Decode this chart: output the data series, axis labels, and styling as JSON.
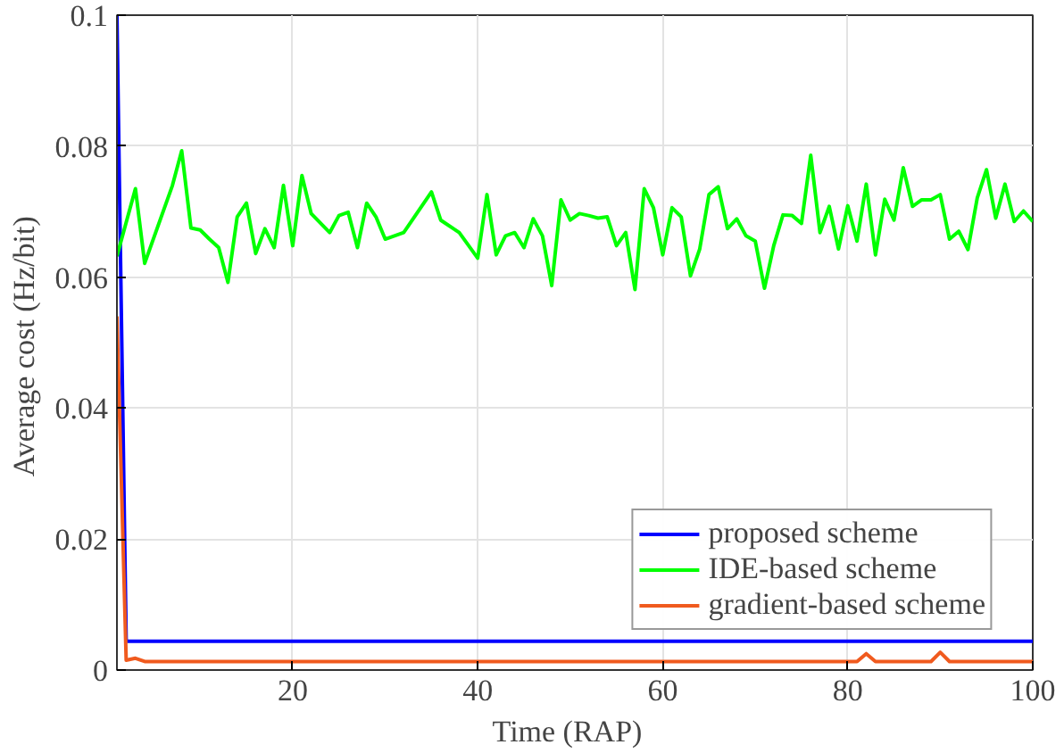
{
  "chart_data": {
    "type": "line",
    "xlabel": "Time   (RAP)",
    "ylabel": "Average cost  (Hz/bit)",
    "xlim": [
      1,
      100
    ],
    "ylim": [
      0,
      0.1
    ],
    "xticks": [
      20,
      40,
      60,
      80,
      100
    ],
    "yticks": [
      0,
      0.02,
      0.04,
      0.06,
      0.08,
      0.1
    ],
    "grid": true,
    "legend": "bottom right",
    "marker": "none",
    "line_style": "solid",
    "series": [
      {
        "name": "proposed scheme",
        "color": "#0000ff",
        "x": [
          1,
          2,
          100
        ],
        "values": [
          0.1,
          0.0044,
          0.0044
        ]
      },
      {
        "name": "IDE-based scheme",
        "color": "#00ff00",
        "x": [
          1,
          3,
          4,
          7,
          8,
          9,
          10,
          11,
          12,
          13,
          14,
          15,
          16,
          17,
          18,
          19,
          20,
          21,
          22,
          24,
          25,
          26,
          27,
          28,
          29,
          30,
          31,
          32,
          35,
          36,
          38,
          40,
          41,
          42,
          43,
          44,
          45,
          46,
          47,
          48,
          49,
          50,
          51,
          52,
          53,
          54,
          55,
          56,
          57,
          58,
          59,
          60,
          61,
          62,
          63,
          64,
          65,
          66,
          67,
          68,
          69,
          70,
          71,
          72,
          73,
          74,
          75,
          76,
          77,
          78,
          79,
          80,
          81,
          82,
          83,
          84,
          85,
          86,
          87,
          88,
          89,
          90,
          91,
          92,
          93,
          94,
          95,
          96,
          97,
          98,
          99,
          100
        ],
        "values": [
          0.0632,
          0.0735,
          0.0621,
          0.074,
          0.0793,
          0.0675,
          0.0672,
          0.0658,
          0.0645,
          0.0592,
          0.0692,
          0.0713,
          0.0636,
          0.0674,
          0.0645,
          0.074,
          0.0648,
          0.0755,
          0.0697,
          0.0668,
          0.0694,
          0.0699,
          0.0645,
          0.0713,
          0.0692,
          0.0658,
          0.0663,
          0.0668,
          0.073,
          0.0687,
          0.0668,
          0.0629,
          0.0726,
          0.0634,
          0.0663,
          0.0668,
          0.0645,
          0.0689,
          0.0663,
          0.0587,
          0.0718,
          0.0687,
          0.0697,
          0.0694,
          0.069,
          0.0692,
          0.0648,
          0.0668,
          0.0581,
          0.0735,
          0.0706,
          0.0634,
          0.0706,
          0.0692,
          0.0602,
          0.0643,
          0.0726,
          0.0738,
          0.0674,
          0.0689,
          0.0663,
          0.0655,
          0.0583,
          0.0648,
          0.0695,
          0.0694,
          0.0682,
          0.0786,
          0.0668,
          0.0708,
          0.0643,
          0.0709,
          0.0655,
          0.0742,
          0.0634,
          0.0719,
          0.0687,
          0.0767,
          0.0708,
          0.0718,
          0.0718,
          0.0726,
          0.0658,
          0.067,
          0.0642,
          0.0721,
          0.0764,
          0.069,
          0.0742,
          0.0685,
          0.0701,
          0.0685
        ]
      },
      {
        "name": "gradient-based scheme",
        "color": "#f05a1e",
        "x": [
          1,
          2,
          3,
          4,
          81,
          82,
          83,
          89,
          90,
          91,
          100
        ],
        "values": [
          0.054,
          0.0015,
          0.0018,
          0.0013,
          0.0013,
          0.0025,
          0.0013,
          0.0013,
          0.0027,
          0.0013,
          0.0013
        ]
      }
    ]
  }
}
